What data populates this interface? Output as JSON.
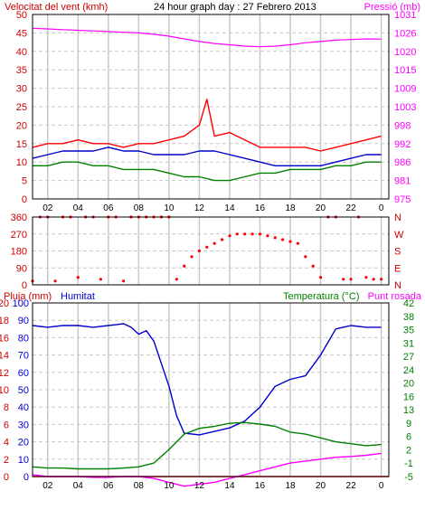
{
  "chart_data": [
    {
      "type": "line",
      "title": "24 hour graph day : 27 Febrero 2013",
      "left_axis_label": "Velocitat del vent (kmh)",
      "right_axis_label": "Pressió (mb)",
      "x_tick_labels": [
        "02",
        "04",
        "06",
        "08",
        "10",
        "12",
        "14",
        "16",
        "18",
        "20",
        "22",
        "0"
      ],
      "left_ticks": [
        0,
        5,
        10,
        15,
        20,
        25,
        30,
        35,
        40,
        45,
        50
      ],
      "right_ticks": [
        975,
        981,
        986,
        992,
        998,
        1003,
        1009,
        1015,
        1020,
        1026,
        1031
      ],
      "ylim_left": [
        0,
        50
      ],
      "ylim_right": [
        975,
        1031
      ],
      "xlim": [
        1,
        24.5
      ],
      "grid": true,
      "series": [
        {
          "role": "gust",
          "color": "#ff0000",
          "axis": "left",
          "x": [
            1,
            2,
            3,
            4,
            5,
            6,
            7,
            8,
            9,
            10,
            11,
            12,
            12.5,
            13,
            14,
            15,
            16,
            17,
            18,
            19,
            20,
            21,
            22,
            23,
            24
          ],
          "y": [
            14,
            15,
            15,
            16,
            15,
            15,
            14,
            15,
            15,
            16,
            17,
            20,
            27,
            17,
            18,
            16,
            14,
            14,
            14,
            14,
            13,
            14,
            15,
            16,
            17
          ]
        },
        {
          "role": "average",
          "color": "#0000cc",
          "axis": "left",
          "x": [
            1,
            2,
            3,
            4,
            5,
            6,
            7,
            8,
            9,
            10,
            11,
            12,
            13,
            14,
            15,
            16,
            17,
            18,
            19,
            20,
            21,
            22,
            23,
            24
          ],
          "y": [
            11,
            12,
            13,
            13,
            13,
            14,
            13,
            13,
            12,
            12,
            12,
            13,
            13,
            12,
            11,
            10,
            9,
            9,
            9,
            9,
            10,
            11,
            12,
            12
          ]
        },
        {
          "role": "wind",
          "color": "#008000",
          "axis": "left",
          "x": [
            1,
            2,
            3,
            4,
            5,
            6,
            7,
            8,
            9,
            10,
            11,
            12,
            13,
            14,
            15,
            16,
            17,
            18,
            19,
            20,
            21,
            22,
            23,
            24
          ],
          "y": [
            9,
            9,
            10,
            10,
            9,
            9,
            8,
            8,
            8,
            7,
            6,
            6,
            5,
            5,
            6,
            7,
            7,
            8,
            8,
            8,
            9,
            9,
            10,
            10
          ]
        },
        {
          "role": "pressure",
          "color": "#ff00ff",
          "axis": "right",
          "x": [
            1,
            2,
            3,
            4,
            5,
            6,
            7,
            8,
            9,
            10,
            11,
            12,
            13,
            14,
            15,
            16,
            17,
            18,
            19,
            20,
            21,
            22,
            23,
            24
          ],
          "y": [
            1026.8,
            1026.6,
            1026.4,
            1026.2,
            1026.0,
            1025.8,
            1025.6,
            1025.4,
            1025.0,
            1024.4,
            1023.6,
            1022.8,
            1022.2,
            1021.8,
            1021.4,
            1021.2,
            1021.4,
            1021.8,
            1022.4,
            1022.8,
            1023.2,
            1023.4,
            1023.6,
            1023.5
          ]
        }
      ]
    },
    {
      "type": "scatter",
      "left_ticks": [
        0,
        90,
        180,
        270,
        360
      ],
      "right_labels": [
        "N",
        "W",
        "S",
        "E",
        "N"
      ],
      "ylim": [
        0,
        360
      ],
      "xlim": [
        1,
        24.5
      ],
      "series": [
        {
          "role": "direction",
          "color": "#ff0000",
          "x": [
            1,
            1.5,
            2,
            2.5,
            3,
            3.5,
            4,
            4.5,
            5,
            5.5,
            6,
            6.5,
            7,
            7.5,
            8,
            8.5,
            9,
            9.5,
            10,
            10.5,
            11,
            11.5,
            12,
            12.5,
            13,
            13.5,
            14,
            14.5,
            15,
            15.5,
            16,
            16.5,
            17,
            17.5,
            18,
            18.5,
            19,
            19.5,
            20,
            20.5,
            21,
            21.5,
            22,
            22.5,
            23,
            23.5,
            24
          ],
          "y": [
            20,
            360,
            360,
            20,
            360,
            360,
            40,
            360,
            360,
            30,
            360,
            360,
            20,
            360,
            360,
            360,
            360,
            360,
            360,
            30,
            100,
            150,
            180,
            200,
            220,
            240,
            260,
            270,
            270,
            270,
            270,
            260,
            250,
            240,
            230,
            220,
            150,
            100,
            40,
            360,
            360,
            30,
            30,
            360,
            40,
            30,
            30
          ]
        }
      ]
    },
    {
      "type": "line",
      "left_axis_label_1": "Pluja (mm)",
      "left_axis_label_2": "Humitat",
      "right_axis_label_1": "Temperatura (°C)",
      "right_axis_label_2": "Punt rosada",
      "x_tick_labels": [
        "02",
        "04",
        "06",
        "08",
        "10",
        "12",
        "14",
        "16",
        "18",
        "20",
        "22",
        "0"
      ],
      "left_ticks_outer": [
        0,
        2,
        4,
        6,
        8,
        10,
        12,
        14,
        16,
        18,
        20
      ],
      "left_ticks_inner": [
        0,
        10,
        20,
        30,
        40,
        50,
        60,
        70,
        80,
        90,
        100
      ],
      "right_ticks": [
        -5,
        -1,
        2,
        6,
        9,
        13,
        16,
        20,
        24,
        27,
        31,
        35,
        38,
        42
      ],
      "ylim_left": [
        0,
        100
      ],
      "ylim_right": [
        -5,
        40
      ],
      "xlim": [
        1,
        24.5
      ],
      "series": [
        {
          "role": "rain",
          "color": "#ff0000",
          "axis": "left",
          "x": [
            1,
            24.5
          ],
          "y": [
            0,
            0
          ]
        },
        {
          "role": "humidity",
          "color": "#0000cc",
          "axis": "left",
          "x": [
            1,
            2,
            3,
            4,
            5,
            6,
            7,
            7.5,
            8,
            8.5,
            9,
            10,
            10.5,
            11,
            12,
            13,
            14,
            15,
            16,
            17,
            18,
            19,
            20,
            21,
            22,
            23,
            24
          ],
          "y": [
            87,
            86,
            87,
            87,
            86,
            87,
            88,
            86,
            82,
            84,
            78,
            52,
            35,
            25,
            24,
            26,
            28,
            32,
            40,
            52,
            56,
            58,
            70,
            85,
            87,
            86,
            86
          ]
        },
        {
          "role": "temperature",
          "color": "#008000",
          "axis": "right",
          "x": [
            1,
            2,
            3,
            4,
            5,
            6,
            7,
            8,
            9,
            10,
            11,
            12,
            13,
            14,
            15,
            16,
            17,
            18,
            19,
            20,
            21,
            22,
            23,
            24
          ],
          "y": [
            -2.5,
            -2.8,
            -2.8,
            -3,
            -3,
            -3,
            -2.8,
            -2.5,
            -1.5,
            2,
            6,
            7.5,
            8,
            8.8,
            9,
            8.6,
            8,
            6.5,
            6,
            5,
            4,
            3.5,
            3,
            3.3
          ]
        },
        {
          "role": "dewpoint",
          "color": "#ff00ff",
          "axis": "right",
          "x": [
            1,
            2,
            3,
            4,
            5,
            6,
            7,
            8,
            9,
            10,
            11,
            12,
            13,
            14,
            15,
            16,
            17,
            18,
            19,
            20,
            21,
            22,
            23,
            24
          ],
          "y": [
            -4.5,
            -5,
            -5,
            -5,
            -5.2,
            -5.2,
            -5,
            -5,
            -5.5,
            -6.5,
            -7.5,
            -7,
            -6.5,
            -5.5,
            -4.5,
            -3.5,
            -2.5,
            -1.5,
            -1,
            -0.5,
            0,
            0.2,
            0.5,
            1
          ]
        }
      ]
    }
  ]
}
